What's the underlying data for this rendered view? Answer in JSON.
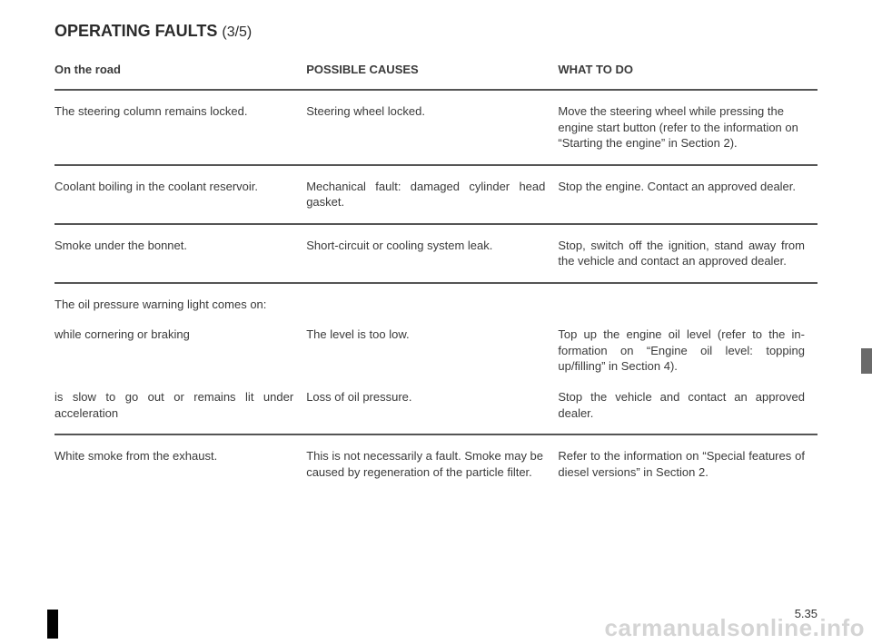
{
  "title": {
    "main": "OPERATING FAULTS",
    "sub": "(3/5)"
  },
  "headers": {
    "col1": "On the road",
    "col2": "POSSIBLE CAUSES",
    "col3": "WHAT TO DO"
  },
  "rows": [
    {
      "fault": "The steering column remains locked.",
      "cause": "Steering wheel locked.",
      "action": "Move the steering wheel while pressing the engine start button (refer to the information on “Starting the engine” in Section 2)."
    },
    {
      "fault": "Coolant boiling in the coolant reser­voir.",
      "cause": "Mechanical fault: damaged cylinder head gasket.",
      "action": "Stop the engine.\nContact an approved dealer."
    },
    {
      "fault": "Smoke under the bonnet.",
      "cause": "Short-circuit or cooling system leak.",
      "action": "Stop, switch off the ignition, stand away from the vehicle and contact an approved dealer."
    }
  ],
  "oil_block": {
    "heading": "The oil pressure warning light comes on:",
    "items": [
      {
        "when": "while cornering or braking",
        "cause": "The level is too low.",
        "action": "Top up the engine oil level (refer to the in­formation on “Engine oil level: topping up/filling” in Section 4)."
      },
      {
        "when": "is slow to go out or remains lit under acceleration",
        "cause": "Loss of oil pressure.",
        "action": "Stop the vehicle and contact an approved dealer."
      }
    ]
  },
  "last_row": {
    "fault": "White smoke from the exhaust.",
    "cause": "This is not necessarily a fault. Smoke may be caused by regeneration of the particle filter.",
    "action": "Refer to the information on “Special fea­tures of diesel versions” in Section 2."
  },
  "pagenum": "5.35",
  "watermark": "carmanualsonline.info"
}
